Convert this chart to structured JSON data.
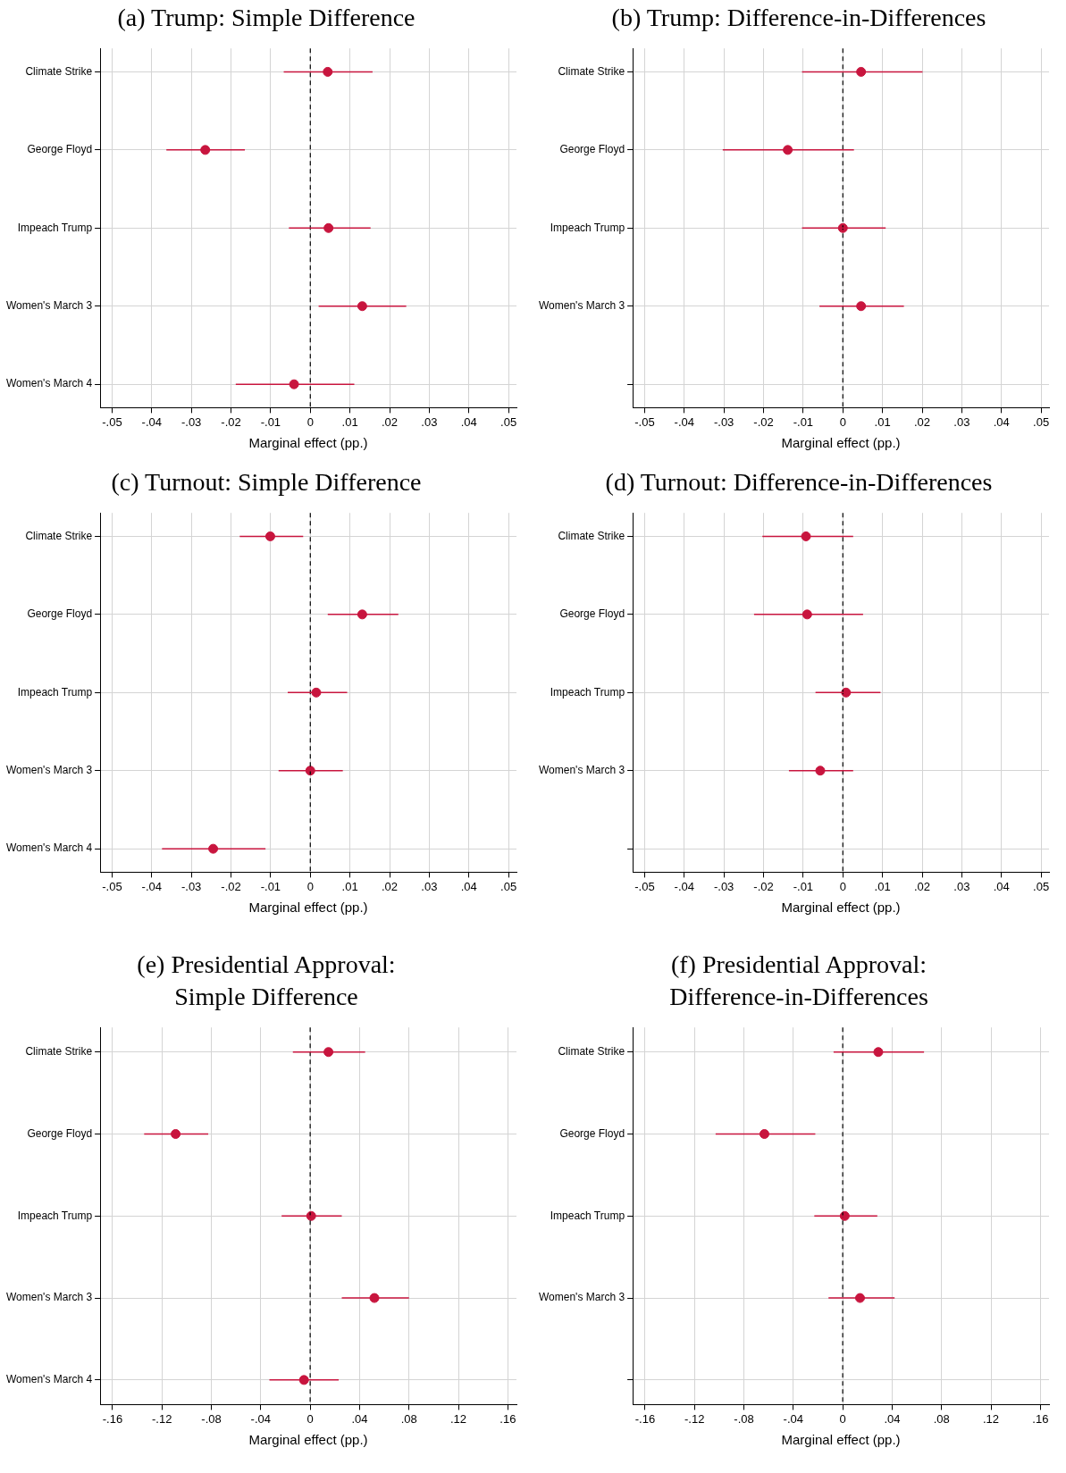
{
  "chart_data": [
    {
      "type": "scatter",
      "orientation": "horizontal",
      "title": "(a) Trump: Simple Difference",
      "xlabel": "Marginal effect (pp.)",
      "categories": [
        "Climate Strike",
        "George Floyd",
        "Impeach Trump",
        "Women's March 3",
        "Women's March 4"
      ],
      "values": [
        0.0044,
        -0.0265,
        0.0046,
        0.0131,
        -0.0041
      ],
      "errors": [
        [
          -0.0067,
          0.0157
        ],
        [
          -0.0363,
          -0.0165
        ],
        [
          -0.0054,
          0.0152
        ],
        [
          0.0021,
          0.0242
        ],
        [
          -0.0188,
          0.0111
        ]
      ],
      "color": "#c8153e",
      "marker": "circle",
      "grid": true,
      "xlim": [
        -0.053,
        0.052
      ],
      "xticks": [
        {
          "value": -0.05,
          "label": "-.05"
        },
        {
          "value": -0.04,
          "label": "-.04"
        },
        {
          "value": -0.03,
          "label": "-.03"
        },
        {
          "value": -0.02,
          "label": "-.02"
        },
        {
          "value": -0.01,
          "label": "-.01"
        },
        {
          "value": 0,
          "label": "0"
        },
        {
          "value": 0.01,
          "label": ".01"
        },
        {
          "value": 0.02,
          "label": ".02"
        },
        {
          "value": 0.03,
          "label": ".03"
        },
        {
          "value": 0.04,
          "label": ".04"
        },
        {
          "value": 0.05,
          "label": ".05"
        }
      ],
      "ref_lines": [
        {
          "axis": "x",
          "value": 0,
          "color": "#000000",
          "line_style": "dashed"
        }
      ]
    },
    {
      "type": "scatter",
      "orientation": "horizontal",
      "title": "(b) Trump: Difference-in-Differences",
      "xlabel": "Marginal effect (pp.)",
      "categories": [
        "Climate Strike",
        "George Floyd",
        "Impeach Trump",
        "Women's March 3",
        null
      ],
      "values": [
        0.0046,
        -0.0139,
        0,
        0.0046,
        null
      ],
      "errors": [
        [
          -0.0103,
          0.0201
        ],
        [
          -0.0303,
          0.0028
        ],
        [
          -0.0103,
          0.0108
        ],
        [
          -0.0059,
          0.0154
        ],
        null
      ],
      "color": "#c8153e",
      "marker": "circle",
      "grid": true,
      "xlim": [
        -0.053,
        0.052
      ],
      "xticks": [
        {
          "value": -0.05,
          "label": "-.05"
        },
        {
          "value": -0.04,
          "label": "-.04"
        },
        {
          "value": -0.03,
          "label": "-.03"
        },
        {
          "value": -0.02,
          "label": "-.02"
        },
        {
          "value": -0.01,
          "label": "-.01"
        },
        {
          "value": 0,
          "label": "0"
        },
        {
          "value": 0.01,
          "label": ".01"
        },
        {
          "value": 0.02,
          "label": ".02"
        },
        {
          "value": 0.03,
          "label": ".03"
        },
        {
          "value": 0.04,
          "label": ".04"
        },
        {
          "value": 0.05,
          "label": ".05"
        }
      ],
      "ref_lines": [
        {
          "axis": "x",
          "value": 0,
          "color": "#000000",
          "line_style": "dashed"
        }
      ]
    },
    {
      "type": "scatter",
      "orientation": "horizontal",
      "title": "(c) Turnout: Simple Difference",
      "xlabel": "Marginal effect (pp.)",
      "categories": [
        "Climate Strike",
        "George Floyd",
        "Impeach Trump",
        "Women's March 3",
        "Women's March 4"
      ],
      "values": [
        -0.0101,
        0.0131,
        0.0015,
        0,
        -0.0245
      ],
      "errors": [
        [
          -0.0178,
          -0.0018
        ],
        [
          0.0044,
          0.0222
        ],
        [
          -0.0057,
          0.0093
        ],
        [
          -0.008,
          0.0082
        ],
        [
          -0.0374,
          -0.0113
        ]
      ],
      "color": "#c8153e",
      "marker": "circle",
      "grid": true,
      "xlim": [
        -0.053,
        0.052
      ],
      "xticks": [
        {
          "value": -0.05,
          "label": "-.05"
        },
        {
          "value": -0.04,
          "label": "-.04"
        },
        {
          "value": -0.03,
          "label": "-.03"
        },
        {
          "value": -0.02,
          "label": "-.02"
        },
        {
          "value": -0.01,
          "label": "-.01"
        },
        {
          "value": 0,
          "label": "0"
        },
        {
          "value": 0.01,
          "label": ".01"
        },
        {
          "value": 0.02,
          "label": ".02"
        },
        {
          "value": 0.03,
          "label": ".03"
        },
        {
          "value": 0.04,
          "label": ".04"
        },
        {
          "value": 0.05,
          "label": ".05"
        }
      ],
      "ref_lines": [
        {
          "axis": "x",
          "value": 0,
          "color": "#000000",
          "line_style": "dashed"
        }
      ]
    },
    {
      "type": "scatter",
      "orientation": "horizontal",
      "title": "(d) Turnout: Difference-in-Differences",
      "xlabel": "Marginal effect (pp.)",
      "categories": [
        "Climate Strike",
        "George Floyd",
        "Impeach Trump",
        "Women's March 3",
        null
      ],
      "values": [
        -0.0093,
        -0.009,
        0.0008,
        -0.0057,
        null
      ],
      "errors": [
        [
          -0.0203,
          0.0026
        ],
        [
          -0.0224,
          0.0051
        ],
        [
          -0.0069,
          0.0095
        ],
        [
          -0.0136,
          0.0026
        ],
        null
      ],
      "color": "#c8153e",
      "marker": "circle",
      "grid": true,
      "xlim": [
        -0.053,
        0.052
      ],
      "xticks": [
        {
          "value": -0.05,
          "label": "-.05"
        },
        {
          "value": -0.04,
          "label": "-.04"
        },
        {
          "value": -0.03,
          "label": "-.03"
        },
        {
          "value": -0.02,
          "label": "-.02"
        },
        {
          "value": -0.01,
          "label": "-.01"
        },
        {
          "value": 0,
          "label": "0"
        },
        {
          "value": 0.01,
          "label": ".01"
        },
        {
          "value": 0.02,
          "label": ".02"
        },
        {
          "value": 0.03,
          "label": ".03"
        },
        {
          "value": 0.04,
          "label": ".04"
        },
        {
          "value": 0.05,
          "label": ".05"
        }
      ],
      "ref_lines": [
        {
          "axis": "x",
          "value": 0,
          "color": "#000000",
          "line_style": "dashed"
        }
      ]
    },
    {
      "type": "scatter",
      "orientation": "horizontal",
      "title": "(e) Presidential Approval:\nSimple Difference",
      "xlabel": "Marginal effect (pp.)",
      "categories": [
        "Climate Strike",
        "George Floyd",
        "Impeach Trump",
        "Women's March 3",
        "Women's March 4"
      ],
      "values": [
        0.0148,
        -0.1089,
        0.0008,
        0.052,
        -0.005
      ],
      "errors": [
        [
          -0.014,
          0.0445
        ],
        [
          -0.1344,
          -0.0825
        ],
        [
          -0.0231,
          0.0256
        ],
        [
          0.0256,
          0.08
        ],
        [
          -0.033,
          0.0231
        ]
      ],
      "color": "#c8153e",
      "marker": "circle",
      "grid": true,
      "xlim": [
        -0.17,
        0.167
      ],
      "xticks": [
        {
          "value": -0.16,
          "label": "-.16"
        },
        {
          "value": -0.12,
          "label": "-.12"
        },
        {
          "value": -0.08,
          "label": "-.08"
        },
        {
          "value": -0.04,
          "label": "-.04"
        },
        {
          "value": 0,
          "label": "0"
        },
        {
          "value": 0.04,
          "label": ".04"
        },
        {
          "value": 0.08,
          "label": ".08"
        },
        {
          "value": 0.12,
          "label": ".12"
        },
        {
          "value": 0.16,
          "label": ".16"
        }
      ],
      "ref_lines": [
        {
          "axis": "x",
          "value": 0,
          "color": "#000000",
          "line_style": "dashed"
        }
      ]
    },
    {
      "type": "scatter",
      "orientation": "horizontal",
      "title": "(f) Presidential Approval:\nDifference-in-Differences",
      "xlabel": "Marginal effect (pp.)",
      "categories": [
        "Climate Strike",
        "George Floyd",
        "Impeach Trump",
        "Women's March 3",
        null
      ],
      "values": [
        0.0288,
        -0.0634,
        0.0016,
        0.014,
        null
      ],
      "errors": [
        [
          -0.0074,
          0.0658
        ],
        [
          -0.1029,
          -0.0222
        ],
        [
          -0.023,
          0.028
        ],
        [
          -0.0115,
          0.042
        ],
        null
      ],
      "color": "#c8153e",
      "marker": "circle",
      "grid": true,
      "xlim": [
        -0.17,
        0.167
      ],
      "xticks": [
        {
          "value": -0.16,
          "label": "-.16"
        },
        {
          "value": -0.12,
          "label": "-.12"
        },
        {
          "value": -0.08,
          "label": "-.08"
        },
        {
          "value": -0.04,
          "label": "-.04"
        },
        {
          "value": 0,
          "label": "0"
        },
        {
          "value": 0.04,
          "label": ".04"
        },
        {
          "value": 0.08,
          "label": ".08"
        },
        {
          "value": 0.12,
          "label": ".12"
        },
        {
          "value": 0.16,
          "label": ".16"
        }
      ],
      "ref_lines": [
        {
          "axis": "x",
          "value": 0,
          "color": "#000000",
          "line_style": "dashed"
        }
      ]
    }
  ]
}
